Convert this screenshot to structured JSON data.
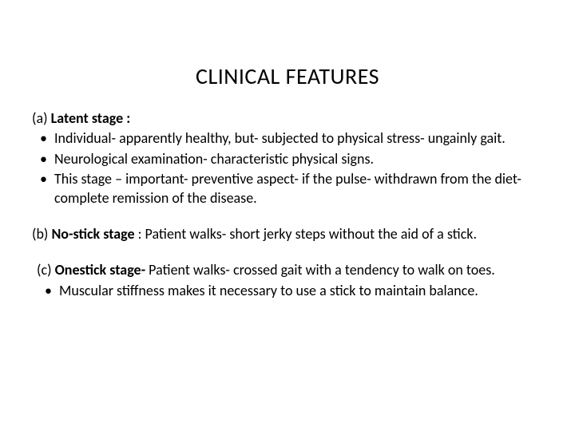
{
  "title": "CLINICAL FEATURES",
  "sectionA": {
    "prefix": "(a) ",
    "heading": "Latent stage :",
    "bullets": [
      "Individual- apparently healthy, but- subjected to physical stress- ungainly gait.",
      "Neurological examination- characteristic physical signs.",
      "This stage – important- preventive aspect- if the pulse- withdrawn from the diet- complete remission of the disease."
    ]
  },
  "sectionB": {
    "prefix": "(b) ",
    "heading": "No-stick stage",
    "text": " : Patient walks- short jerky steps without the aid of a stick."
  },
  "sectionC": {
    "prefix": " (c) ",
    "heading": "Onestick stage-",
    "text": "  Patient walks- crossed gait with a tendency to walk on toes.",
    "bullets": [
      "Muscular stiffness makes it necessary to use a stick to maintain balance."
    ]
  },
  "style": {
    "background_color": "#ffffff",
    "text_color": "#000000",
    "title_fontsize": 28,
    "body_fontsize": 18,
    "font_family": "Calibri, Arial, sans-serif"
  }
}
